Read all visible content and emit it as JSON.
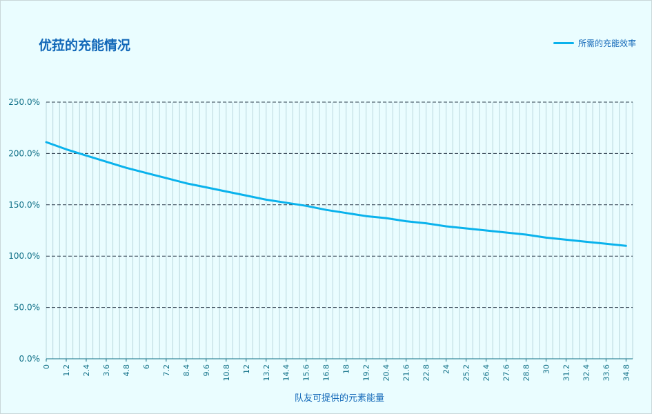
{
  "title": "优菈的充能情况",
  "colors": {
    "line": "#0ab2ec",
    "title": "#1167b8",
    "tick": "#0d6e86",
    "gridMajor": "#2b3a4a",
    "gridMinor": "#b9d6dc"
  },
  "chart_data": {
    "type": "line",
    "title": "优菈的充能情况",
    "xlabel": "队友可提供的元素能量",
    "ylabel": "",
    "legend": "top-right",
    "grid": true,
    "x_range": [
      0,
      35.2
    ],
    "ylim": [
      0,
      2.5
    ],
    "y_ticks": [
      "0.0%",
      "50.0%",
      "100.0%",
      "150.0%",
      "200.0%",
      "250.0%"
    ],
    "x_ticks": [
      "0",
      "1.2",
      "2.4",
      "3.6",
      "4.8",
      "6",
      "7.2",
      "8.4",
      "9.6",
      "10.8",
      "12",
      "13.2",
      "14.4",
      "15.6",
      "16.8",
      "18",
      "19.2",
      "20.4",
      "21.6",
      "22.8",
      "24",
      "25.2",
      "26.4",
      "27.6",
      "28.8",
      "30",
      "31.2",
      "32.4",
      "33.6",
      "34.8"
    ],
    "series": [
      {
        "name": "所需的充能效率",
        "x": [
          0,
          1.2,
          2.4,
          3.6,
          4.8,
          6,
          7.2,
          8.4,
          9.6,
          10.8,
          12,
          13.2,
          14.4,
          15.6,
          16.8,
          18,
          19.2,
          20.4,
          21.6,
          22.8,
          24,
          25.2,
          26.4,
          27.6,
          28.8,
          30,
          31.2,
          32.4,
          33.6,
          34.8
        ],
        "y": [
          2.11,
          2.04,
          1.98,
          1.92,
          1.86,
          1.81,
          1.76,
          1.71,
          1.67,
          1.63,
          1.59,
          1.55,
          1.52,
          1.49,
          1.45,
          1.42,
          1.39,
          1.37,
          1.34,
          1.32,
          1.29,
          1.27,
          1.25,
          1.23,
          1.21,
          1.18,
          1.16,
          1.14,
          1.12,
          1.1
        ]
      }
    ]
  }
}
